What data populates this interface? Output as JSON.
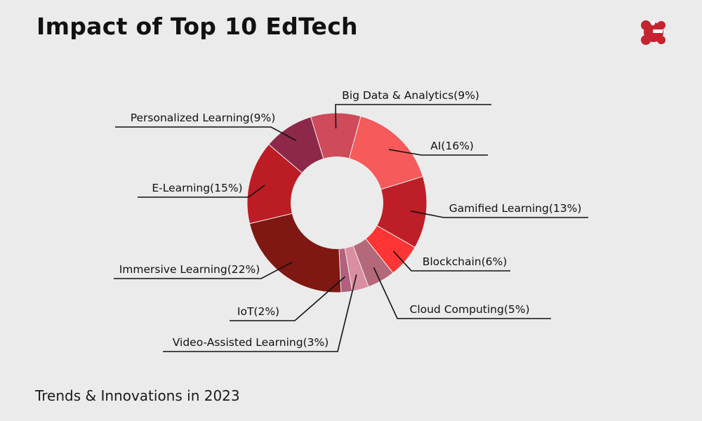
{
  "title": "Impact of Top 10 EdTech",
  "footer": "Trends & Innovations in 2023",
  "logo_icon": "brand-logo-icon",
  "colors": {
    "background": "#ebebeb",
    "leader": "#111111",
    "brand": "#c4232f"
  },
  "chart_data": {
    "type": "pie",
    "variant": "donut",
    "slices": [
      {
        "label": "Big Data & Analytics(9%)",
        "name": "Big Data & Analytics",
        "value": 9,
        "color": "#cf4a5a"
      },
      {
        "label": "AI(16%)",
        "name": "AI",
        "value": 16,
        "color": "#f75a5a"
      },
      {
        "label": "Gamified Learning(13%)",
        "name": "Gamified Learning",
        "value": 13,
        "color": "#be1e27"
      },
      {
        "label": "Blockchain(6%)",
        "name": "Blockchain",
        "value": 6,
        "color": "#ff3535"
      },
      {
        "label": "Cloud Computing(5%)",
        "name": "Cloud Computing",
        "value": 5,
        "color": "#b3697a"
      },
      {
        "label": "Video-Assisted Learning(3%)",
        "name": "Video-Assisted Learning",
        "value": 3,
        "color": "#d98ea2"
      },
      {
        "label": "IoT(2%)",
        "name": "IoT",
        "value": 2,
        "color": "#b2607c"
      },
      {
        "label": "Immersive Learning(22%)",
        "name": "Immersive Learning",
        "value": 22,
        "color": "#7f1712"
      },
      {
        "label": "E-Learning(15%)",
        "name": "E-Learning",
        "value": 15,
        "color": "#bc1c24"
      },
      {
        "label": "Personalized Learning(9%)",
        "name": "Personalized Learning",
        "value": 9,
        "color": "#8e2848"
      }
    ]
  }
}
